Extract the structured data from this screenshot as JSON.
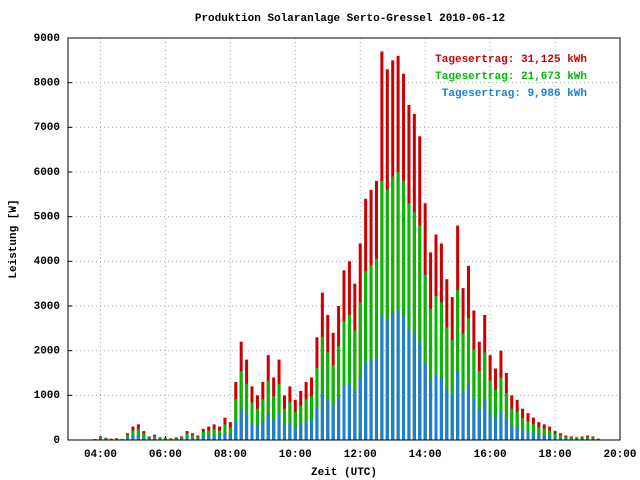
{
  "chart_data": {
    "type": "bar",
    "title": "Produktion Solaranlage Serto-Gressel 2010-06-12",
    "x_label": "Zeit (UTC)",
    "y_label": "Leistung [W]",
    "x": [
      230,
      240,
      250,
      260,
      270,
      280,
      290,
      300,
      310,
      320,
      330,
      340,
      350,
      360,
      370,
      380,
      390,
      400,
      410,
      420,
      430,
      440,
      450,
      460,
      470,
      480,
      490,
      500,
      510,
      520,
      530,
      540,
      550,
      560,
      570,
      580,
      590,
      600,
      610,
      620,
      630,
      640,
      650,
      660,
      670,
      680,
      690,
      700,
      710,
      720,
      730,
      740,
      750,
      760,
      770,
      780,
      790,
      800,
      810,
      820,
      830,
      840,
      850,
      860,
      870,
      880,
      890,
      900,
      910,
      920,
      930,
      940,
      950,
      960,
      970,
      980,
      990,
      1000,
      1010,
      1020,
      1030,
      1040,
      1050,
      1060,
      1070,
      1080,
      1090,
      1100,
      1110,
      1120,
      1130,
      1140,
      1150,
      1160
    ],
    "series": [
      {
        "name": "Tagesertrag: 31,125 kWh",
        "color": "#cc0000",
        "values": [
          20,
          80,
          50,
          30,
          40,
          20,
          150,
          300,
          350,
          200,
          80,
          120,
          60,
          50,
          40,
          60,
          80,
          200,
          150,
          100,
          250,
          300,
          350,
          300,
          500,
          400,
          1300,
          2200,
          1800,
          1200,
          1000,
          1300,
          1900,
          1400,
          1800,
          1000,
          1200,
          900,
          1100,
          1300,
          1400,
          2300,
          3300,
          2800,
          2400,
          3000,
          3800,
          4000,
          3500,
          4400,
          5400,
          5600,
          5800,
          8700,
          8300,
          8500,
          8600,
          8200,
          7500,
          7300,
          6800,
          5300,
          4200,
          4600,
          4400,
          3600,
          3200,
          4800,
          3400,
          3900,
          2900,
          2200,
          2800,
          1900,
          1600,
          2000,
          1500,
          1000,
          900,
          700,
          600,
          500,
          400,
          350,
          300,
          200,
          150,
          100,
          80,
          60,
          80,
          100,
          80,
          30
        ]
      },
      {
        "name": "Tagesertrag: 21,673 kWh",
        "color": "#00bb00",
        "values": [
          10,
          60,
          40,
          20,
          30,
          10,
          110,
          210,
          250,
          140,
          60,
          80,
          40,
          40,
          30,
          40,
          60,
          140,
          110,
          70,
          180,
          210,
          250,
          210,
          350,
          280,
          910,
          1540,
          1260,
          840,
          700,
          910,
          1330,
          980,
          1260,
          700,
          840,
          630,
          770,
          910,
          980,
          1610,
          2310,
          1960,
          1680,
          2100,
          2660,
          2800,
          2450,
          3080,
          3780,
          3920,
          4060,
          5800,
          5600,
          5900,
          6000,
          5800,
          5300,
          5100,
          4800,
          3700,
          2940,
          3220,
          3080,
          2520,
          2240,
          3360,
          2380,
          2730,
          2030,
          1540,
          1960,
          1330,
          1120,
          1400,
          1050,
          700,
          630,
          490,
          420,
          350,
          280,
          250,
          210,
          140,
          110,
          70,
          60,
          40,
          60,
          70,
          60,
          20
        ]
      },
      {
        "name": "Tagesertrag: 9,986 kWh",
        "color": "#1a7fd6",
        "values": [
          10,
          30,
          20,
          10,
          10,
          10,
          50,
          100,
          110,
          60,
          30,
          40,
          20,
          20,
          10,
          20,
          30,
          60,
          50,
          30,
          80,
          100,
          110,
          100,
          160,
          130,
          420,
          700,
          580,
          380,
          320,
          420,
          610,
          450,
          580,
          320,
          380,
          290,
          350,
          420,
          450,
          740,
          1060,
          900,
          770,
          960,
          1220,
          1280,
          1120,
          1410,
          1730,
          1790,
          1860,
          2800,
          2700,
          2850,
          2900,
          2800,
          2500,
          2400,
          2200,
          1700,
          1340,
          1470,
          1410,
          1150,
          1020,
          1540,
          1090,
          1250,
          930,
          700,
          900,
          610,
          510,
          640,
          480,
          320,
          290,
          220,
          190,
          160,
          130,
          110,
          100,
          60,
          50,
          30,
          30,
          20,
          30,
          30,
          30,
          10
        ]
      }
    ],
    "xlim": [
      180,
      1200
    ],
    "xticks": [
      {
        "value": 240,
        "label": "04:00"
      },
      {
        "value": 360,
        "label": "06:00"
      },
      {
        "value": 480,
        "label": "08:00"
      },
      {
        "value": 600,
        "label": "10:00"
      },
      {
        "value": 720,
        "label": "12:00"
      },
      {
        "value": 840,
        "label": "14:00"
      },
      {
        "value": 960,
        "label": "16:00"
      },
      {
        "value": 1080,
        "label": "18:00"
      },
      {
        "value": 1200,
        "label": "20:00"
      }
    ],
    "ylim": [
      0,
      9000
    ],
    "yticks": [
      0,
      1000,
      2000,
      3000,
      4000,
      5000,
      6000,
      7000,
      8000,
      9000
    ],
    "grid": true,
    "legend": "upper right"
  }
}
